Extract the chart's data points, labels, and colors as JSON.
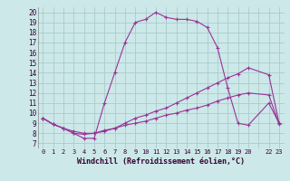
{
  "background_color": "#cce8e8",
  "grid_color": "#aacccc",
  "line_color": "#993399",
  "xlabel": "Windchill (Refroidissement éolien,°C)",
  "ylabel_ticks": [
    7,
    8,
    9,
    10,
    11,
    12,
    13,
    14,
    15,
    16,
    17,
    18,
    19,
    20
  ],
  "xtick_labels": [
    "0",
    "1",
    "2",
    "3",
    "4",
    "5",
    "6",
    "7",
    "8",
    "9",
    "10",
    "11",
    "12",
    "13",
    "14",
    "15",
    "16",
    "17",
    "18",
    "19",
    "20",
    "",
    "22",
    "23"
  ],
  "xlim": [
    -0.5,
    23.5
  ],
  "ylim": [
    6.5,
    20.5
  ],
  "series1_x": [
    0,
    1,
    2,
    3,
    4,
    5,
    6,
    7,
    8,
    9,
    10,
    11,
    12,
    13,
    14,
    15,
    16,
    17,
    18,
    19,
    20,
    22,
    23
  ],
  "series1_y": [
    9.5,
    8.9,
    8.5,
    8.0,
    7.5,
    7.5,
    11.0,
    14.0,
    17.0,
    19.0,
    19.3,
    20.0,
    19.5,
    19.3,
    19.3,
    19.1,
    18.5,
    16.5,
    12.5,
    9.0,
    8.8,
    11.0,
    9.0
  ],
  "series2_x": [
    0,
    1,
    2,
    3,
    4,
    5,
    6,
    7,
    8,
    9,
    10,
    11,
    12,
    13,
    14,
    15,
    16,
    17,
    18,
    19,
    20,
    22,
    23
  ],
  "series2_y": [
    9.5,
    8.9,
    8.5,
    8.0,
    7.9,
    8.0,
    8.3,
    8.5,
    9.0,
    9.5,
    9.8,
    10.2,
    10.5,
    11.0,
    11.5,
    12.0,
    12.5,
    13.0,
    13.5,
    13.9,
    14.5,
    13.8,
    9.0
  ],
  "series3_x": [
    0,
    1,
    2,
    3,
    4,
    5,
    6,
    7,
    8,
    9,
    10,
    11,
    12,
    13,
    14,
    15,
    16,
    17,
    18,
    19,
    20,
    22,
    23
  ],
  "series3_y": [
    9.5,
    8.9,
    8.5,
    8.2,
    8.0,
    8.0,
    8.2,
    8.5,
    8.8,
    9.0,
    9.2,
    9.5,
    9.8,
    10.0,
    10.3,
    10.5,
    10.8,
    11.2,
    11.5,
    11.8,
    12.0,
    11.8,
    8.9
  ]
}
